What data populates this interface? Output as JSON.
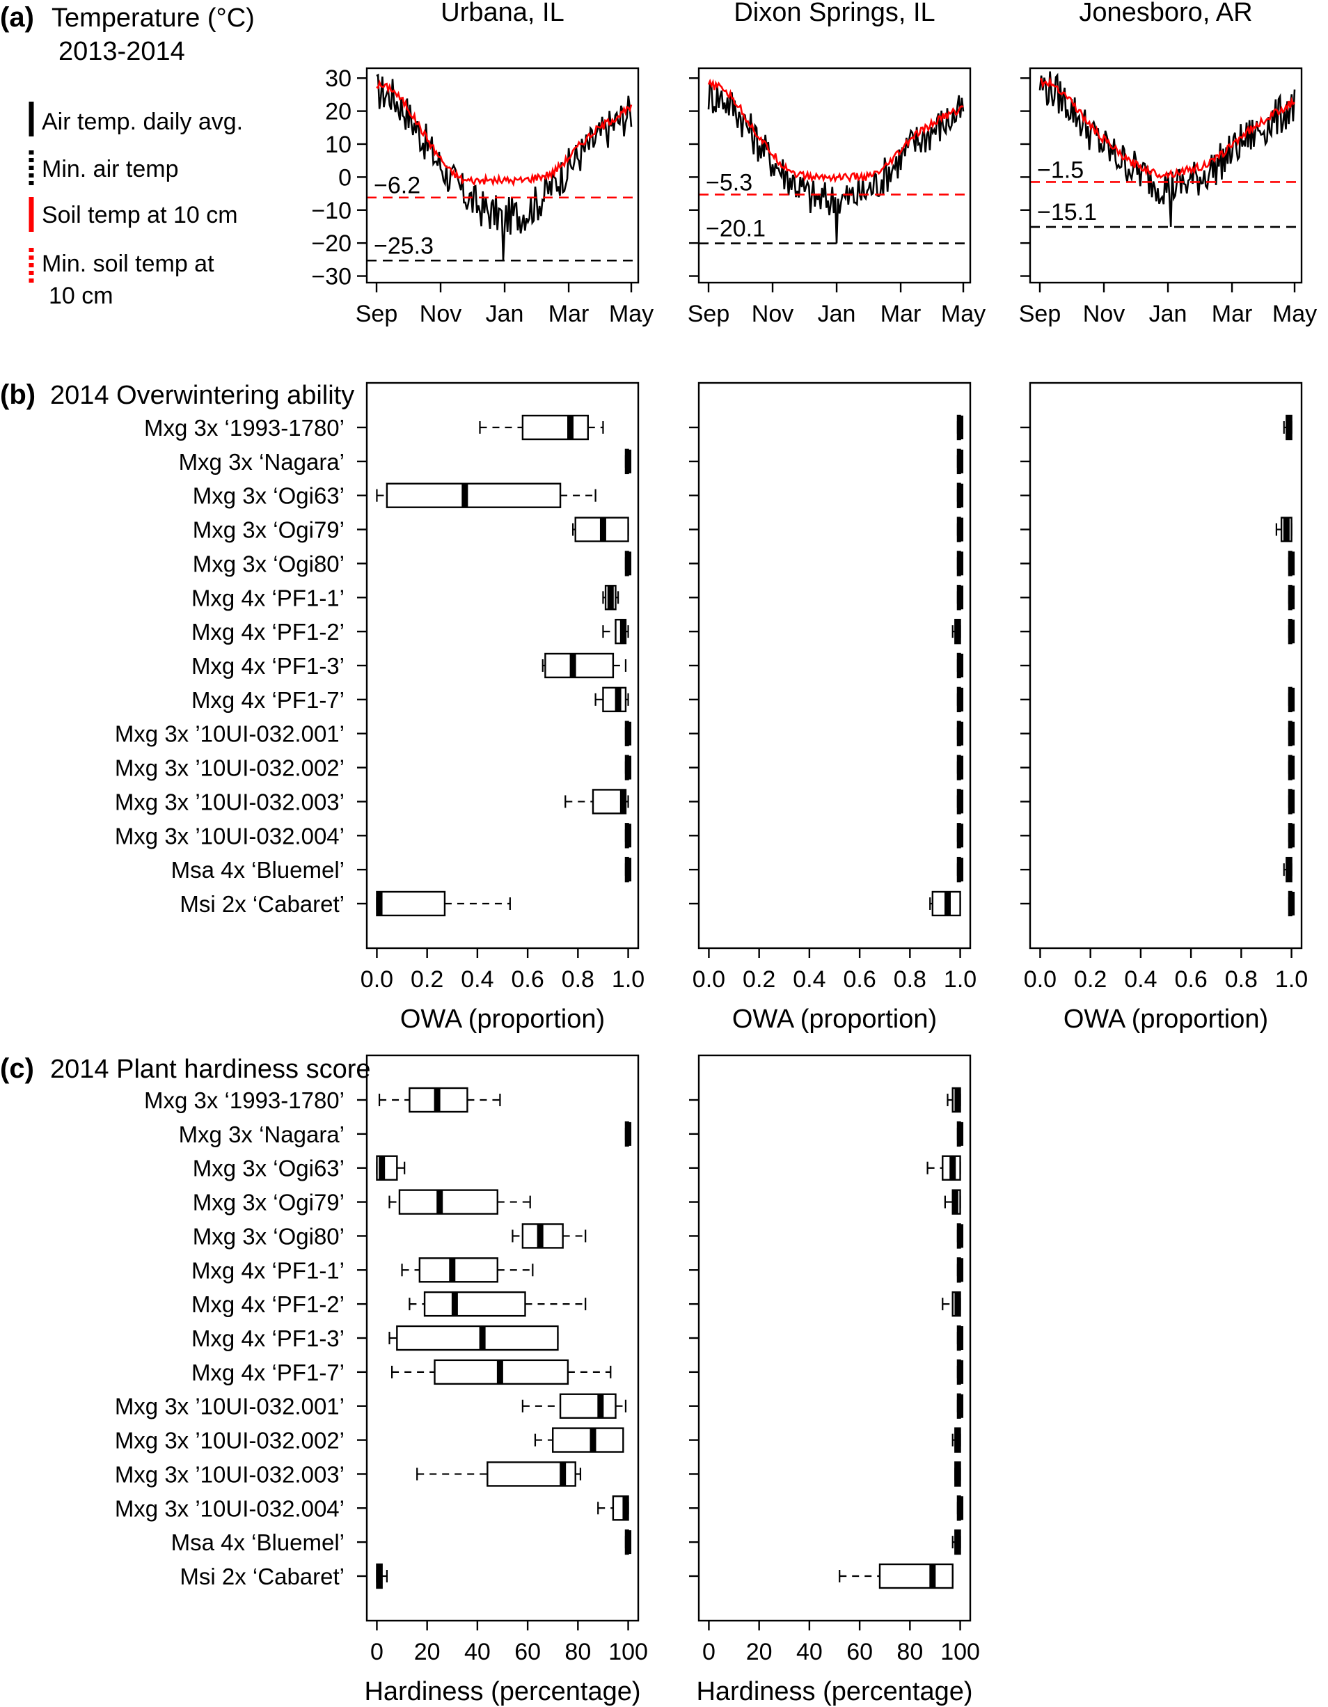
{
  "panel_a": {
    "label": "(a)",
    "title_line1": "Temperature (°C)",
    "title_line2": "2013-2014",
    "legend": [
      {
        "text": "Air temp. daily avg.",
        "color": "#000000",
        "style": "solid"
      },
      {
        "text": "Min. air temp",
        "color": "#000000",
        "style": "dotted"
      },
      {
        "text": "Soil temp at 10 cm",
        "color": "#ff0000",
        "style": "solid"
      },
      {
        "text": "Min. soil temp at",
        "text2": "10 cm",
        "color": "#ff0000",
        "style": "dotted"
      }
    ]
  },
  "panel_b": {
    "label": "(b)",
    "title": "2014 Overwintering ability"
  },
  "panel_c": {
    "label": "(c)",
    "title": "2014 Plant hardiness  score"
  },
  "chart_data": [
    {
      "type": "line",
      "site": "Urbana, IL",
      "title": "Urbana, IL",
      "ylim": [
        -32,
        33
      ],
      "yticks": [
        30,
        20,
        10,
        0,
        -10,
        -20,
        -30
      ],
      "yticklabels": [
        "30",
        "20",
        "10",
        "0",
        "−10",
        "−20",
        "−30"
      ],
      "xticklabels": [
        "Sep",
        "Nov",
        "Jan",
        "Mar",
        "May"
      ],
      "air_profile": [
        [
          0,
          26
        ],
        [
          10,
          25
        ],
        [
          20,
          20
        ],
        [
          30,
          13
        ],
        [
          40,
          6
        ],
        [
          50,
          0
        ],
        [
          60,
          -5
        ],
        [
          70,
          -9
        ],
        [
          80,
          -11
        ],
        [
          90,
          -12
        ],
        [
          100,
          -11
        ],
        [
          110,
          -8
        ],
        [
          120,
          -3
        ],
        [
          130,
          2
        ],
        [
          140,
          7
        ],
        [
          150,
          11
        ],
        [
          160,
          15
        ],
        [
          175,
          20
        ]
      ],
      "soil_profile": [
        [
          0,
          28
        ],
        [
          10,
          27
        ],
        [
          20,
          22
        ],
        [
          30,
          15
        ],
        [
          40,
          8
        ],
        [
          50,
          2
        ],
        [
          60,
          -1
        ],
        [
          70,
          -1
        ],
        [
          80,
          -1
        ],
        [
          90,
          -1
        ],
        [
          100,
          -1
        ],
        [
          110,
          0
        ],
        [
          120,
          1
        ],
        [
          130,
          5
        ],
        [
          140,
          10
        ],
        [
          150,
          14
        ],
        [
          160,
          17
        ],
        [
          175,
          21
        ]
      ],
      "air_amp": 6,
      "air_min_day": 87,
      "min_air": -25.3,
      "min_soil": -6.2,
      "min_air_label": "−25.3",
      "min_soil_label": "−6.2",
      "line_colors": {
        "air": "#000000",
        "soil": "#ff0000"
      }
    },
    {
      "type": "line",
      "site": "Dixon Springs, IL",
      "title": "Dixon Springs, IL",
      "ylim": [
        -32,
        33
      ],
      "yticks": [
        30,
        20,
        10,
        0,
        -10,
        -20,
        -30
      ],
      "yticklabels": [
        "30",
        "20",
        "10",
        "0",
        "−10",
        "−20",
        "−30"
      ],
      "xticklabels": [
        "Sep",
        "Nov",
        "Jan",
        "Mar",
        "May"
      ],
      "air_profile": [
        [
          0,
          25
        ],
        [
          10,
          24
        ],
        [
          20,
          20
        ],
        [
          30,
          13
        ],
        [
          40,
          7
        ],
        [
          50,
          2
        ],
        [
          60,
          -2
        ],
        [
          70,
          -6
        ],
        [
          80,
          -7
        ],
        [
          90,
          -7
        ],
        [
          100,
          -6
        ],
        [
          110,
          -4
        ],
        [
          120,
          0
        ],
        [
          130,
          5
        ],
        [
          140,
          10
        ],
        [
          150,
          13
        ],
        [
          160,
          16
        ],
        [
          175,
          20
        ]
      ],
      "soil_profile": [
        [
          0,
          28
        ],
        [
          10,
          27
        ],
        [
          20,
          22
        ],
        [
          30,
          15
        ],
        [
          40,
          9
        ],
        [
          50,
          4
        ],
        [
          60,
          1
        ],
        [
          70,
          0
        ],
        [
          80,
          0
        ],
        [
          90,
          0
        ],
        [
          100,
          0
        ],
        [
          110,
          0
        ],
        [
          120,
          2
        ],
        [
          130,
          7
        ],
        [
          140,
          12
        ],
        [
          150,
          15
        ],
        [
          160,
          18
        ],
        [
          175,
          21
        ]
      ],
      "air_amp": 6,
      "air_min_day": 88,
      "min_air": -20.1,
      "min_soil": -5.3,
      "min_air_label": "−20.1",
      "min_soil_label": "−5.3",
      "line_colors": {
        "air": "#000000",
        "soil": "#ff0000"
      }
    },
    {
      "type": "line",
      "site": "Jonesboro, AR",
      "title": "Jonesboro, AR",
      "ylim": [
        -32,
        33
      ],
      "yticks": [
        30,
        20,
        10,
        0,
        -10,
        -20,
        -30
      ],
      "yticklabels": [
        "30",
        "20",
        "10",
        "0",
        "−10",
        "−20",
        "−30"
      ],
      "xticklabels": [
        "Sep",
        "Nov",
        "Jan",
        "Mar",
        "May"
      ],
      "air_profile": [
        [
          0,
          28
        ],
        [
          10,
          26
        ],
        [
          20,
          22
        ],
        [
          30,
          16
        ],
        [
          40,
          11
        ],
        [
          50,
          7
        ],
        [
          60,
          4
        ],
        [
          70,
          1
        ],
        [
          80,
          -2
        ],
        [
          90,
          -3
        ],
        [
          100,
          -2
        ],
        [
          110,
          0
        ],
        [
          120,
          3
        ],
        [
          130,
          7
        ],
        [
          140,
          11
        ],
        [
          150,
          14
        ],
        [
          160,
          17
        ],
        [
          175,
          22
        ]
      ],
      "soil_profile": [
        [
          0,
          29
        ],
        [
          10,
          28
        ],
        [
          20,
          24
        ],
        [
          30,
          18
        ],
        [
          40,
          13
        ],
        [
          50,
          9
        ],
        [
          60,
          5
        ],
        [
          70,
          3
        ],
        [
          80,
          1
        ],
        [
          90,
          1
        ],
        [
          100,
          2
        ],
        [
          110,
          3
        ],
        [
          120,
          5
        ],
        [
          130,
          9
        ],
        [
          140,
          13
        ],
        [
          150,
          16
        ],
        [
          160,
          19
        ],
        [
          175,
          23
        ]
      ],
      "air_amp": 6,
      "air_min_day": 90,
      "min_air": -15.1,
      "min_soil": -1.5,
      "min_air_label": "−15.1",
      "min_soil_label": "−1.5",
      "line_colors": {
        "air": "#000000",
        "soil": "#ff0000"
      }
    },
    {
      "type": "box",
      "panel": "b",
      "site": "Urbana, IL",
      "xlabel": "OWA (proportion)",
      "xlim": [
        -0.04,
        1.04
      ],
      "xticks": [
        0,
        0.2,
        0.4,
        0.6,
        0.8,
        1.0
      ],
      "xticklabels": [
        "0.0",
        "0.2",
        "0.4",
        "0.6",
        "0.8",
        "1.0"
      ],
      "categories": [
        "Mxg 3x ‘1993-1780’",
        "Mxg 3x ‘Nagara’",
        "Mxg 3x ‘Ogi63’",
        "Mxg 3x ‘Ogi79’",
        "Mxg 3x ‘Ogi80’",
        "Mxg 4x ‘PF1-1’",
        "Mxg 4x ‘PF1-2’",
        "Mxg 4x ‘PF1-3’",
        "Mxg 4x ‘PF1-7’",
        "Mxg 3x ’10UI-032.001’",
        "Mxg 3x ’10UI-032.002’",
        "Mxg 3x ’10UI-032.003’",
        "Mxg 3x ’10UI-032.004’",
        "Msa 4x ‘Bluemel’",
        "Msi 2x ‘Cabaret’"
      ],
      "boxes": [
        [
          0.41,
          0.58,
          0.77,
          0.84,
          0.9
        ],
        [
          0.99,
          0.99,
          1.0,
          1.0,
          1.0
        ],
        [
          0.0,
          0.04,
          0.35,
          0.73,
          0.87
        ],
        [
          0.78,
          0.79,
          0.9,
          1.0,
          1.0
        ],
        [
          0.99,
          0.99,
          1.0,
          1.0,
          1.0
        ],
        [
          0.9,
          0.91,
          0.93,
          0.95,
          0.96
        ],
        [
          0.9,
          0.95,
          0.98,
          0.99,
          1.0
        ],
        [
          0.66,
          0.67,
          0.78,
          0.94,
          0.99
        ],
        [
          0.87,
          0.9,
          0.96,
          0.99,
          1.0
        ],
        [
          0.99,
          0.99,
          1.0,
          1.0,
          1.0
        ],
        [
          0.99,
          0.99,
          1.0,
          1.0,
          1.0
        ],
        [
          0.75,
          0.86,
          0.98,
          0.99,
          1.0
        ],
        [
          0.99,
          0.99,
          1.0,
          1.0,
          1.0
        ],
        [
          0.99,
          0.99,
          1.0,
          1.0,
          1.0
        ],
        [
          0.0,
          0.0,
          0.01,
          0.27,
          0.53
        ]
      ]
    },
    {
      "type": "box",
      "panel": "b",
      "site": "Dixon Springs, IL",
      "xlabel": "OWA (proportion)",
      "xlim": [
        -0.04,
        1.04
      ],
      "xticks": [
        0,
        0.2,
        0.4,
        0.6,
        0.8,
        1.0
      ],
      "xticklabels": [
        "0.0",
        "0.2",
        "0.4",
        "0.6",
        "0.8",
        "1.0"
      ],
      "categories": [
        "Mxg 3x ‘1993-1780’",
        "Mxg 3x ‘Nagara’",
        "Mxg 3x ‘Ogi63’",
        "Mxg 3x ‘Ogi79’",
        "Mxg 3x ‘Ogi80’",
        "Mxg 4x ‘PF1-1’",
        "Mxg 4x ‘PF1-2’",
        "Mxg 4x ‘PF1-3’",
        "Mxg 4x ‘PF1-7’",
        "Mxg 3x ’10UI-032.001’",
        "Mxg 3x ’10UI-032.002’",
        "Mxg 3x ’10UI-032.003’",
        "Mxg 3x ’10UI-032.004’",
        "Msa 4x ‘Bluemel’",
        "Msi 2x ‘Cabaret’"
      ],
      "boxes": [
        [
          0.99,
          0.99,
          1.0,
          1.0,
          1.0
        ],
        [
          0.99,
          0.99,
          1.0,
          1.0,
          1.0
        ],
        [
          0.99,
          0.99,
          1.0,
          1.0,
          1.0
        ],
        [
          0.99,
          0.99,
          1.0,
          1.0,
          1.0
        ],
        [
          0.99,
          0.99,
          1.0,
          1.0,
          1.0
        ],
        [
          0.99,
          0.99,
          1.0,
          1.0,
          1.0
        ],
        [
          0.97,
          0.98,
          0.99,
          1.0,
          1.0
        ],
        [
          0.99,
          0.99,
          1.0,
          1.0,
          1.0
        ],
        [
          0.99,
          0.99,
          1.0,
          1.0,
          1.0
        ],
        [
          0.99,
          0.99,
          1.0,
          1.0,
          1.0
        ],
        [
          0.99,
          0.99,
          1.0,
          1.0,
          1.0
        ],
        [
          0.99,
          0.99,
          1.0,
          1.0,
          1.0
        ],
        [
          0.99,
          0.99,
          1.0,
          1.0,
          1.0
        ],
        [
          0.99,
          0.99,
          1.0,
          1.0,
          1.0
        ],
        [
          0.88,
          0.89,
          0.95,
          1.0,
          1.0
        ]
      ]
    },
    {
      "type": "box",
      "panel": "b",
      "site": "Jonesboro, AR",
      "xlabel": "OWA (proportion)",
      "xlim": [
        -0.04,
        1.04
      ],
      "xticks": [
        0,
        0.2,
        0.4,
        0.6,
        0.8,
        1.0
      ],
      "xticklabels": [
        "0.0",
        "0.2",
        "0.4",
        "0.6",
        "0.8",
        "1.0"
      ],
      "categories": [
        "Mxg 3x ‘1993-1780’",
        "Mxg 3x ‘Nagara’",
        "Mxg 3x ‘Ogi63’",
        "Mxg 3x ‘Ogi79’",
        "Mxg 3x ‘Ogi80’",
        "Mxg 4x ‘PF1-1’",
        "Mxg 4x ‘PF1-2’",
        "Mxg 4x ‘PF1-3’",
        "Mxg 4x ‘PF1-7’",
        "Mxg 3x ’10UI-032.001’",
        "Mxg 3x ’10UI-032.002’",
        "Mxg 3x ’10UI-032.003’",
        "Mxg 3x ’10UI-032.004’",
        "Msa 4x ‘Bluemel’",
        "Msi 2x ‘Cabaret’"
      ],
      "boxes": [
        [
          0.97,
          0.98,
          0.99,
          1.0,
          1.0
        ],
        null,
        null,
        [
          0.94,
          0.96,
          0.98,
          1.0,
          1.0
        ],
        [
          0.99,
          0.99,
          1.0,
          1.0,
          1.0
        ],
        [
          0.99,
          0.99,
          1.0,
          1.0,
          1.0
        ],
        [
          0.99,
          0.99,
          1.0,
          1.0,
          1.0
        ],
        null,
        [
          0.99,
          0.99,
          1.0,
          1.0,
          1.0
        ],
        [
          0.99,
          0.99,
          1.0,
          1.0,
          1.0
        ],
        [
          0.99,
          0.99,
          1.0,
          1.0,
          1.0
        ],
        [
          0.99,
          0.99,
          1.0,
          1.0,
          1.0
        ],
        [
          0.99,
          0.99,
          1.0,
          1.0,
          1.0
        ],
        [
          0.97,
          0.98,
          0.99,
          1.0,
          1.0
        ],
        [
          0.99,
          0.99,
          1.0,
          1.0,
          1.0
        ]
      ]
    },
    {
      "type": "box",
      "panel": "c",
      "site": "Urbana, IL",
      "xlabel": "Hardiness (percentage)",
      "xlim": [
        -4,
        104
      ],
      "xticks": [
        0,
        20,
        40,
        60,
        80,
        100
      ],
      "xticklabels": [
        "0",
        "20",
        "40",
        "60",
        "80",
        "100"
      ],
      "categories": [
        "Mxg 3x ‘1993-1780’",
        "Mxg 3x ‘Nagara’",
        "Mxg 3x ‘Ogi63’",
        "Mxg 3x ‘Ogi79’",
        "Mxg 3x ‘Ogi80’",
        "Mxg 4x ‘PF1-1’",
        "Mxg 4x ‘PF1-2’",
        "Mxg 4x ‘PF1-3’",
        "Mxg 4x ‘PF1-7’",
        "Mxg 3x ’10UI-032.001’",
        "Mxg 3x ’10UI-032.002’",
        "Mxg 3x ’10UI-032.003’",
        "Mxg 3x ’10UI-032.004’",
        "Msa 4x ‘Bluemel’",
        "Msi 2x ‘Cabaret’"
      ],
      "boxes": [
        [
          1,
          13,
          24,
          36,
          49
        ],
        [
          99,
          99,
          100,
          100,
          100
        ],
        [
          0,
          0,
          2,
          8,
          11
        ],
        [
          5,
          9,
          25,
          48,
          61
        ],
        [
          54,
          58,
          65,
          74,
          83
        ],
        [
          10,
          17,
          30,
          48,
          62
        ],
        [
          13,
          19,
          31,
          59,
          83
        ],
        [
          5,
          8,
          42,
          72,
          72
        ],
        [
          6,
          23,
          49,
          76,
          93
        ],
        [
          58,
          73,
          89,
          95,
          99
        ],
        [
          63,
          70,
          86,
          98,
          98
        ],
        [
          16,
          44,
          74,
          79,
          81
        ],
        [
          88,
          94,
          99,
          100,
          100
        ],
        [
          99,
          99,
          100,
          100,
          100
        ],
        [
          0,
          0,
          1,
          2,
          4
        ]
      ]
    },
    {
      "type": "box",
      "panel": "c",
      "site": "Dixon Springs, IL",
      "xlabel": "Hardiness (percentage)",
      "xlim": [
        -4,
        104
      ],
      "xticks": [
        0,
        20,
        40,
        60,
        80,
        100
      ],
      "xticklabels": [
        "0",
        "20",
        "40",
        "60",
        "80",
        "100"
      ],
      "categories": [
        "Mxg 3x ‘1993-1780’",
        "Mxg 3x ‘Nagara’",
        "Mxg 3x ‘Ogi63’",
        "Mxg 3x ‘Ogi79’",
        "Mxg 3x ‘Ogi80’",
        "Mxg 4x ‘PF1-1’",
        "Mxg 4x ‘PF1-2’",
        "Mxg 4x ‘PF1-3’",
        "Mxg 4x ‘PF1-7’",
        "Mxg 3x ’10UI-032.001’",
        "Mxg 3x ’10UI-032.002’",
        "Mxg 3x ’10UI-032.003’",
        "Mxg 3x ’10UI-032.004’",
        "Msa 4x ‘Bluemel’",
        "Msi 2x ‘Cabaret’"
      ],
      "boxes": [
        [
          95,
          97,
          99,
          100,
          100
        ],
        [
          99,
          99,
          100,
          100,
          100
        ],
        [
          87,
          93,
          97,
          100,
          100
        ],
        [
          94,
          97,
          98,
          100,
          100
        ],
        [
          99,
          99,
          100,
          100,
          100
        ],
        [
          99,
          99,
          100,
          100,
          100
        ],
        [
          93,
          97,
          99,
          100,
          100
        ],
        [
          99,
          99,
          100,
          100,
          100
        ],
        [
          99,
          99,
          100,
          100,
          100
        ],
        [
          99,
          99,
          100,
          100,
          100
        ],
        [
          97,
          98,
          99,
          100,
          100
        ],
        [
          98,
          98,
          99,
          100,
          100
        ],
        [
          99,
          99,
          100,
          100,
          100
        ],
        [
          97,
          98,
          99,
          100,
          100
        ],
        [
          52,
          68,
          89,
          97,
          97
        ]
      ]
    }
  ]
}
